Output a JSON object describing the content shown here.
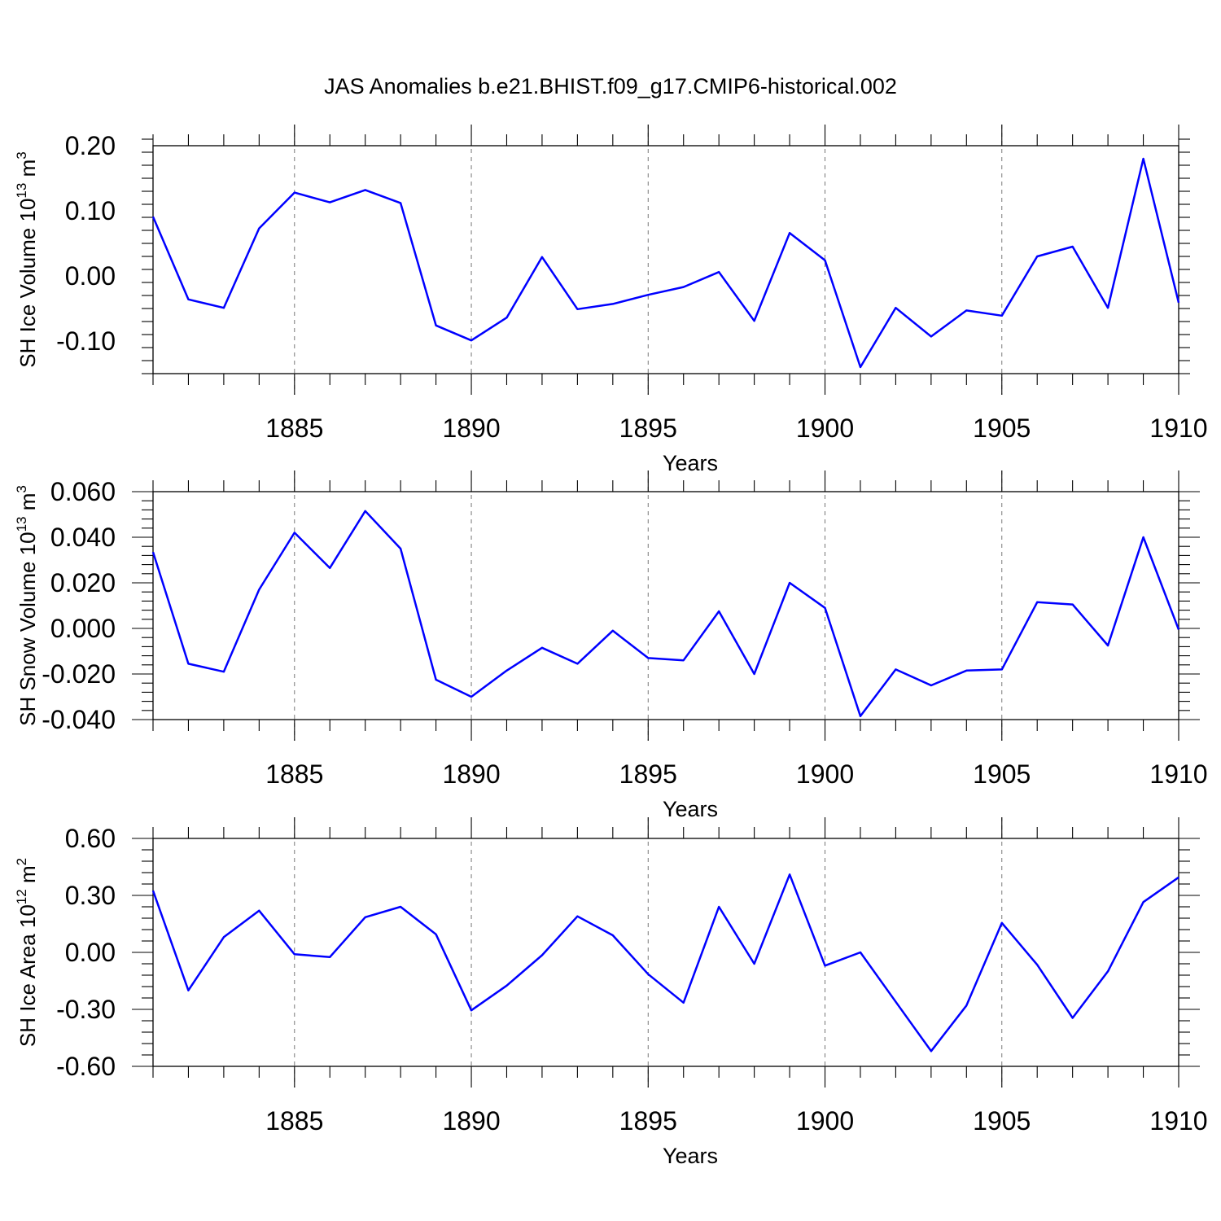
{
  "title": "JAS Anomalies b.e21.BHIST.f09_g17.CMIP6-historical.002",
  "colors": {
    "series": "#0000ff",
    "grid": "#777777",
    "axes": "#000000"
  },
  "chart_data": [
    {
      "type": "line",
      "ylabel": "SH Ice Volume 10",
      "ylabel_exp": "13",
      "ylabel_unit": " m",
      "ylabel_unit_exp": "3",
      "xlabel": "Years",
      "xlim": [
        1881,
        1910
      ],
      "ylim": [
        -0.15,
        0.2
      ],
      "yticks": [
        -0.1,
        0.0,
        0.1,
        0.2
      ],
      "ytick_labels": [
        "-0.10",
        "0.00",
        "0.10",
        "0.20"
      ],
      "xticks": [
        1885,
        1890,
        1895,
        1900,
        1905,
        1910
      ],
      "xtick_labels": [
        "1885",
        "1890",
        "1895",
        "1900",
        "1905",
        "1910"
      ],
      "grid": "dashed vertical at major x ticks",
      "x": [
        1881,
        1882,
        1883,
        1884,
        1885,
        1886,
        1887,
        1888,
        1889,
        1890,
        1891,
        1892,
        1893,
        1894,
        1895,
        1896,
        1897,
        1898,
        1899,
        1900,
        1901,
        1902,
        1903,
        1904,
        1905,
        1906,
        1907,
        1908,
        1909,
        1910
      ],
      "values": [
        0.091,
        -0.036,
        -0.049,
        0.073,
        0.128,
        0.113,
        0.132,
        0.112,
        -0.076,
        -0.099,
        -0.064,
        0.029,
        -0.051,
        -0.043,
        -0.029,
        -0.017,
        0.006,
        -0.069,
        0.066,
        0.024,
        -0.14,
        -0.049,
        -0.093,
        -0.053,
        -0.061,
        0.03,
        0.045,
        -0.049,
        0.18,
        -0.041
      ]
    },
    {
      "type": "line",
      "ylabel": "SH Snow Volume 10",
      "ylabel_exp": "13",
      "ylabel_unit": " m",
      "ylabel_unit_exp": "3",
      "xlabel": "Years",
      "xlim": [
        1881,
        1910
      ],
      "ylim": [
        -0.04,
        0.06
      ],
      "yticks": [
        -0.04,
        -0.02,
        0.0,
        0.02,
        0.04,
        0.06
      ],
      "ytick_labels": [
        "-0.040",
        "-0.020",
        "0.000",
        "0.020",
        "0.040",
        "0.060"
      ],
      "xticks": [
        1885,
        1890,
        1895,
        1900,
        1905,
        1910
      ],
      "xtick_labels": [
        "1885",
        "1890",
        "1895",
        "1900",
        "1905",
        "1910"
      ],
      "grid": "dashed vertical at major x ticks",
      "x": [
        1881,
        1882,
        1883,
        1884,
        1885,
        1886,
        1887,
        1888,
        1889,
        1890,
        1891,
        1892,
        1893,
        1894,
        1895,
        1896,
        1897,
        1898,
        1899,
        1900,
        1901,
        1902,
        1903,
        1904,
        1905,
        1906,
        1907,
        1908,
        1909,
        1910
      ],
      "values": [
        0.0335,
        -0.0155,
        -0.019,
        0.017,
        0.042,
        0.0265,
        0.0515,
        0.035,
        -0.0225,
        -0.03,
        -0.0185,
        -0.0085,
        -0.0155,
        -0.001,
        -0.013,
        -0.014,
        0.0075,
        -0.02,
        0.02,
        0.009,
        -0.0385,
        -0.018,
        -0.025,
        -0.0185,
        -0.018,
        0.0115,
        0.0105,
        -0.0075,
        0.04,
        -0.0005
      ]
    },
    {
      "type": "line",
      "ylabel": "SH Ice Area 10",
      "ylabel_exp": "12",
      "ylabel_unit": " m",
      "ylabel_unit_exp": "2",
      "xlabel": "Years",
      "xlim": [
        1881,
        1910
      ],
      "ylim": [
        -0.6,
        0.6
      ],
      "yticks": [
        -0.6,
        -0.3,
        0.0,
        0.3,
        0.6
      ],
      "ytick_labels": [
        "-0.60",
        "-0.30",
        "0.00",
        "0.30",
        "0.60"
      ],
      "xticks": [
        1885,
        1890,
        1895,
        1900,
        1905,
        1910
      ],
      "xtick_labels": [
        "1885",
        "1890",
        "1895",
        "1900",
        "1905",
        "1910"
      ],
      "grid": "dashed vertical at major x ticks",
      "x": [
        1881,
        1882,
        1883,
        1884,
        1885,
        1886,
        1887,
        1888,
        1889,
        1890,
        1891,
        1892,
        1893,
        1894,
        1895,
        1896,
        1897,
        1898,
        1899,
        1900,
        1901,
        1902,
        1903,
        1904,
        1905,
        1906,
        1907,
        1908,
        1909,
        1910
      ],
      "values": [
        0.325,
        -0.2,
        0.08,
        0.22,
        -0.01,
        -0.025,
        0.185,
        0.24,
        0.095,
        -0.305,
        -0.175,
        -0.015,
        0.19,
        0.09,
        -0.115,
        -0.265,
        0.24,
        -0.06,
        0.41,
        -0.07,
        0.0,
        -0.26,
        -0.52,
        -0.28,
        0.155,
        -0.065,
        -0.345,
        -0.1,
        0.265,
        0.395
      ]
    }
  ]
}
